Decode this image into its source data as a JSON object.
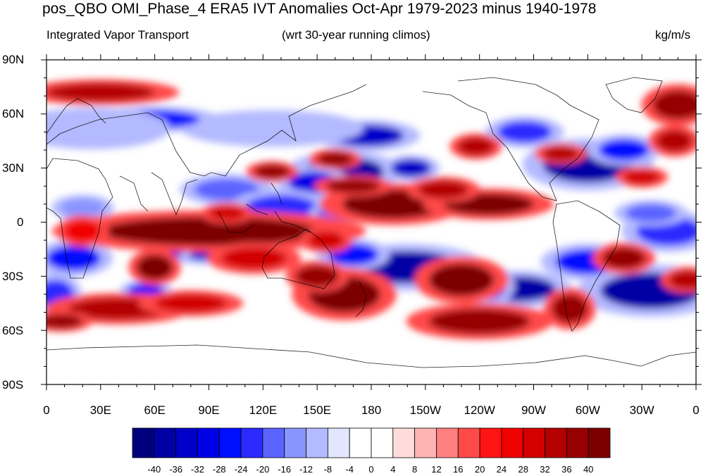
{
  "title": "pos_QBO OMI_Phase_4 ERA5 IVT Anomalies Oct-Apr 1979-2023 minus 1940-1978",
  "left_subtitle": "Integrated Vapor Transport",
  "center_subtitle": "(wrt 30-year running climos)",
  "right_subtitle": "kg/m/s",
  "lat_labels": [
    "90N",
    "60N",
    "30N",
    "0",
    "30S",
    "60S",
    "90S"
  ],
  "lon_labels": [
    "0",
    "30E",
    "60E",
    "90E",
    "120E",
    "150E",
    "180",
    "150W",
    "120W",
    "90W",
    "60W",
    "30W",
    "0"
  ],
  "colorbar": {
    "labels": [
      "-40",
      "-36",
      "-32",
      "-28",
      "-24",
      "-20",
      "-16",
      "-12",
      "-8",
      "-4",
      "0",
      "4",
      "8",
      "12",
      "16",
      "20",
      "24",
      "28",
      "32",
      "36",
      "40"
    ],
    "colors": [
      "#00007d",
      "#0000a5",
      "#0000c8",
      "#0000e6",
      "#0010ff",
      "#2a2aff",
      "#5a64ff",
      "#8a94ff",
      "#b4baff",
      "#e2e6ff",
      "#ffffff",
      "#ffffff",
      "#ffdcdc",
      "#ffb4b4",
      "#ff8080",
      "#ff4a4a",
      "#ff1414",
      "#f00000",
      "#d20000",
      "#b40000",
      "#960000",
      "#7d0000"
    ]
  },
  "anomaly_blobs": [
    {
      "lon": 165,
      "lat": 28,
      "rx": 22,
      "ry": 8,
      "level": -40
    },
    {
      "lon": 148,
      "lat": 22,
      "rx": 14,
      "ry": 6,
      "level": -32
    },
    {
      "lon": 202,
      "lat": 30,
      "rx": 11,
      "ry": 5,
      "level": -36
    },
    {
      "lon": 178,
      "lat": 48,
      "rx": 20,
      "ry": 6,
      "level": -36
    },
    {
      "lon": 125,
      "lat": 52,
      "rx": 35,
      "ry": 7,
      "level": -12
    },
    {
      "lon": 60,
      "lat": 57,
      "rx": 25,
      "ry": 5,
      "level": -28
    },
    {
      "lon": 25,
      "lat": 52,
      "rx": 30,
      "ry": 8,
      "level": -12
    },
    {
      "lon": 100,
      "lat": 18,
      "rx": 18,
      "ry": 6,
      "level": -20
    },
    {
      "lon": 130,
      "lat": 8,
      "rx": 20,
      "ry": 7,
      "level": -24
    },
    {
      "lon": 160,
      "lat": 5,
      "rx": 10,
      "ry": 4,
      "level": -20
    },
    {
      "lon": 90,
      "lat": -15,
      "rx": 18,
      "ry": 6,
      "level": -36
    },
    {
      "lon": 70,
      "lat": -10,
      "rx": 8,
      "ry": 10,
      "level": -32
    },
    {
      "lon": 200,
      "lat": -25,
      "rx": 30,
      "ry": 9,
      "level": -40
    },
    {
      "lon": 170,
      "lat": -18,
      "rx": 14,
      "ry": 6,
      "level": -28
    },
    {
      "lon": 262,
      "lat": -37,
      "rx": 20,
      "ry": 7,
      "level": -40
    },
    {
      "lon": 245,
      "lat": -35,
      "rx": 10,
      "ry": 8,
      "level": -28
    },
    {
      "lon": 335,
      "lat": -38,
      "rx": 28,
      "ry": 10,
      "level": -40
    },
    {
      "lon": 300,
      "lat": -22,
      "rx": 18,
      "ry": 7,
      "level": -28
    },
    {
      "lon": 345,
      "lat": -5,
      "rx": 18,
      "ry": 8,
      "level": -24
    },
    {
      "lon": 300,
      "lat": 32,
      "rx": 25,
      "ry": 10,
      "level": -40
    },
    {
      "lon": 320,
      "lat": 40,
      "rx": 14,
      "ry": 6,
      "level": -28
    },
    {
      "lon": 335,
      "lat": 5,
      "rx": 14,
      "ry": 5,
      "level": -20
    },
    {
      "lon": 15,
      "lat": -20,
      "rx": 15,
      "ry": 7,
      "level": -28
    },
    {
      "lon": 5,
      "lat": -40,
      "rx": 10,
      "ry": 8,
      "level": -24
    },
    {
      "lon": 55,
      "lat": -38,
      "rx": 10,
      "ry": 4,
      "level": -28
    },
    {
      "lon": 20,
      "lat": 8,
      "rx": 12,
      "ry": 5,
      "level": -16
    },
    {
      "lon": 265,
      "lat": 50,
      "rx": 15,
      "ry": 6,
      "level": -24
    },
    {
      "lon": 250,
      "lat": 10,
      "rx": 10,
      "ry": 4,
      "level": -12
    },
    {
      "lon": 90,
      "lat": -5,
      "rx": 60,
      "ry": 8,
      "level": 40
    },
    {
      "lon": 60,
      "lat": -25,
      "rx": 10,
      "ry": 7,
      "level": 40
    },
    {
      "lon": 115,
      "lat": -20,
      "rx": 18,
      "ry": 6,
      "level": 24
    },
    {
      "lon": 125,
      "lat": 28,
      "rx": 10,
      "ry": 4,
      "level": 32
    },
    {
      "lon": 160,
      "lat": 35,
      "rx": 10,
      "ry": 4,
      "level": 32
    },
    {
      "lon": 192,
      "lat": 10,
      "rx": 28,
      "ry": 8,
      "level": 40
    },
    {
      "lon": 170,
      "lat": 20,
      "rx": 15,
      "ry": 4,
      "level": 32
    },
    {
      "lon": 245,
      "lat": 10,
      "rx": 25,
      "ry": 6,
      "level": 36
    },
    {
      "lon": 220,
      "lat": 18,
      "rx": 14,
      "ry": 5,
      "level": 28
    },
    {
      "lon": 165,
      "lat": -40,
      "rx": 20,
      "ry": 10,
      "level": 40
    },
    {
      "lon": 150,
      "lat": -30,
      "rx": 12,
      "ry": 6,
      "level": 32
    },
    {
      "lon": 230,
      "lat": -32,
      "rx": 18,
      "ry": 9,
      "level": 40
    },
    {
      "lon": 240,
      "lat": -55,
      "rx": 28,
      "ry": 7,
      "level": 32
    },
    {
      "lon": 40,
      "lat": -48,
      "rx": 28,
      "ry": 6,
      "level": 28
    },
    {
      "lon": 80,
      "lat": -45,
      "rx": 20,
      "ry": 5,
      "level": 24
    },
    {
      "lon": 290,
      "lat": -48,
      "rx": 10,
      "ry": 8,
      "level": 32
    },
    {
      "lon": 8,
      "lat": -55,
      "rx": 12,
      "ry": 4,
      "level": 32
    },
    {
      "lon": 30,
      "lat": 72,
      "rx": 30,
      "ry": 5,
      "level": 28
    },
    {
      "lon": 350,
      "lat": 65,
      "rx": 14,
      "ry": 8,
      "level": 32
    },
    {
      "lon": 348,
      "lat": 45,
      "rx": 10,
      "ry": 6,
      "level": 28
    },
    {
      "lon": 238,
      "lat": 42,
      "rx": 10,
      "ry": 5,
      "level": 28
    },
    {
      "lon": 285,
      "lat": 38,
      "rx": 10,
      "ry": 4,
      "level": 28
    },
    {
      "lon": 330,
      "lat": 25,
      "rx": 10,
      "ry": 4,
      "level": 24
    },
    {
      "lon": 320,
      "lat": -20,
      "rx": 12,
      "ry": 6,
      "level": 32
    },
    {
      "lon": 355,
      "lat": -32,
      "rx": 10,
      "ry": 5,
      "level": 28
    },
    {
      "lon": 20,
      "lat": -5,
      "rx": 10,
      "ry": 6,
      "level": 20
    },
    {
      "lon": 100,
      "lat": 5,
      "rx": 10,
      "ry": 4,
      "level": 24
    },
    {
      "lon": 155,
      "lat": -10,
      "rx": 10,
      "ry": 5,
      "level": 24
    }
  ]
}
